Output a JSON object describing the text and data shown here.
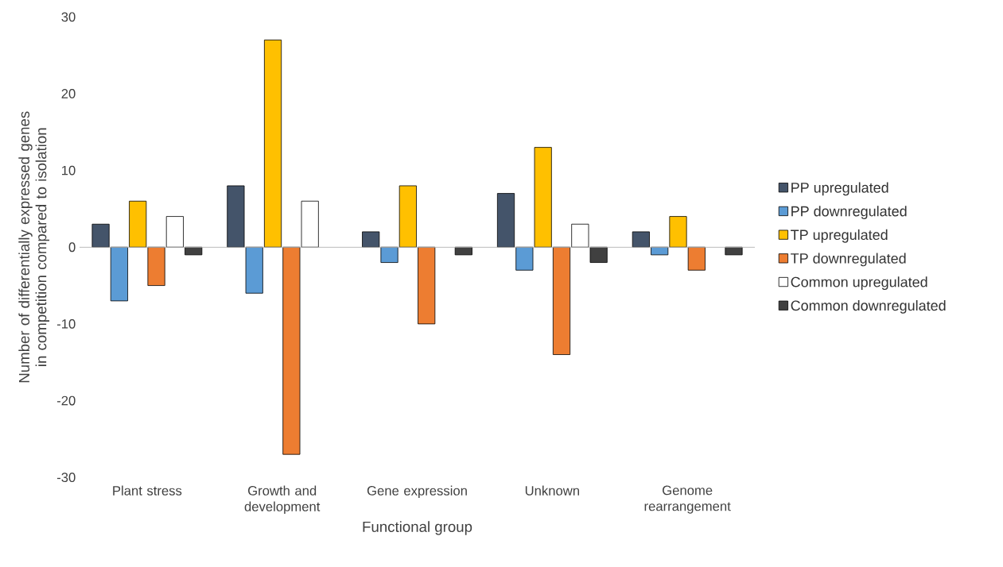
{
  "chart_data": {
    "type": "bar",
    "xlabel": "Functional group",
    "ylabel": "Number of differentially expressed genes in competition compared to isolation",
    "categories": [
      "Plant stress",
      "Growth and development",
      "Gene expression",
      "Unknown",
      "Genome rearrangement"
    ],
    "series": [
      {
        "name": "PP upregulated",
        "color": "#44546a",
        "values": [
          3,
          8,
          2,
          7,
          2
        ]
      },
      {
        "name": "PP downregulated",
        "color": "#5b9bd5",
        "values": [
          -7,
          -6,
          -2,
          -3,
          -1
        ]
      },
      {
        "name": "TP upregulated",
        "color": "#ffc000",
        "values": [
          6,
          27,
          8,
          13,
          4
        ]
      },
      {
        "name": "TP downregulated",
        "color": "#ed7d31",
        "values": [
          -5,
          -27,
          -10,
          -14,
          -3
        ]
      },
      {
        "name": "Common upregulated",
        "color": "#ffffff",
        "values": [
          4,
          6,
          null,
          3,
          null
        ]
      },
      {
        "name": "Common downregulated",
        "color": "#404040",
        "values": [
          -1,
          null,
          -1,
          -2,
          -1
        ]
      }
    ],
    "ylim": [
      -30,
      30
    ],
    "yticks": [
      -30,
      -20,
      -10,
      0,
      10,
      20,
      30
    ],
    "legend": "right"
  }
}
